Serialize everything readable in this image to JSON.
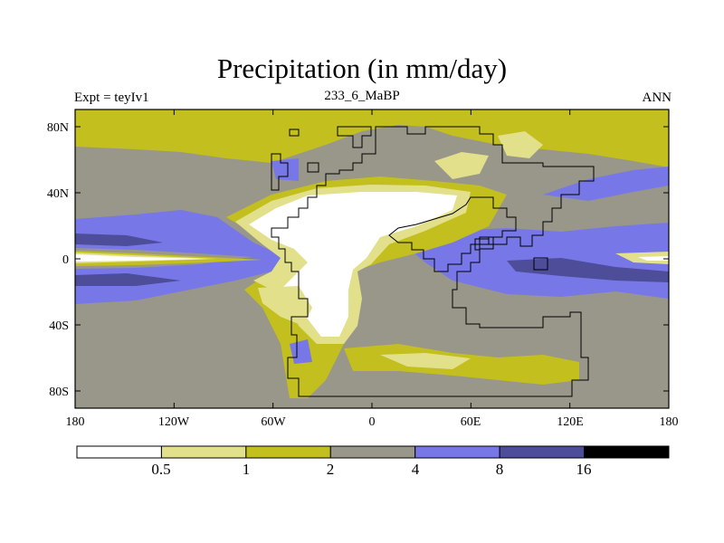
{
  "title": "Precipitation (in mm/day)",
  "left_label": "Expt = teyIv1",
  "center_label": "233_6_MaBP",
  "right_label": "ANN",
  "lat_ticks": [
    "80N",
    "40N",
    "0",
    "40S",
    "80S"
  ],
  "lon_ticks": [
    "180",
    "120W",
    "60W",
    "0",
    "60E",
    "120E",
    "180"
  ],
  "colorbar": {
    "labels": [
      "0.5",
      "1",
      "2",
      "4",
      "8",
      "16"
    ],
    "colors": [
      "#ffffff",
      "#e2e08b",
      "#c2bf1e",
      "#99968a",
      "#7777e8",
      "#4d4d99",
      "#000000"
    ]
  },
  "chart_data": {
    "type": "heatmap",
    "title": "Precipitation (in mm/day)",
    "experiment": "teyIv1",
    "period": "233_6_MaBP",
    "season": "ANN",
    "units": "mm/day",
    "lon_range": [
      -180,
      180
    ],
    "lat_range": [
      -90,
      90
    ],
    "contour_levels": [
      0.5,
      1,
      2,
      4,
      8,
      16
    ]
  }
}
